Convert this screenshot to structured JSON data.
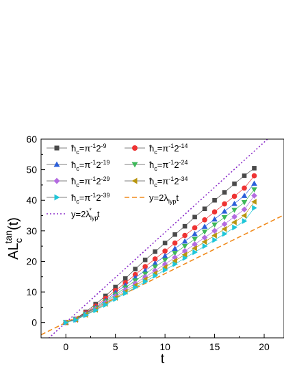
{
  "chart_data": {
    "type": "scatter",
    "xlabel": "t",
    "ylabel": {
      "base": "AL",
      "sub": "c",
      "sup": "tan",
      "tail": "(t)"
    },
    "xlim": [
      -2.5,
      22
    ],
    "ylim": [
      -5,
      60
    ],
    "xticks": [
      "0",
      "5",
      "10",
      "15",
      "20"
    ],
    "yticks": [
      "0",
      "10",
      "20",
      "30",
      "40",
      "50",
      "60"
    ],
    "grid": false,
    "legend_position": "top-left",
    "x": [
      0,
      1,
      2,
      3,
      4,
      5,
      6,
      7,
      8,
      9,
      10,
      11,
      12,
      13,
      14,
      15,
      16,
      17,
      18,
      19
    ],
    "series": [
      {
        "name": "ħc=π⁻¹2⁻⁹",
        "legend": {
          "pre": "ħ",
          "sub": "c",
          "mid": "=π",
          "sup1": "-1",
          "mid2": "2",
          "sup2": "-9"
        },
        "marker": "square",
        "color": "#4a4a4a",
        "values": [
          0,
          1.2,
          3.5,
          6.0,
          8.7,
          11.6,
          14.4,
          17.5,
          20.5,
          23.2,
          26.0,
          28.8,
          31.5,
          34.5,
          37.2,
          40.0,
          42.6,
          45.4,
          48.0,
          50.5
        ]
      },
      {
        "name": "ħc=π⁻¹2⁻¹⁴",
        "legend": {
          "pre": "ħ",
          "sub": "c",
          "mid": "=π",
          "sup1": "-1",
          "mid2": "2",
          "sup2": "-14"
        },
        "marker": "circle",
        "color": "#ee3333",
        "values": [
          0,
          1.1,
          3.2,
          5.4,
          7.9,
          10.5,
          13.0,
          15.7,
          18.3,
          20.8,
          23.4,
          26.0,
          28.5,
          31.0,
          33.6,
          36.2,
          38.8,
          41.3,
          44.0,
          48.0
        ]
      },
      {
        "name": "ħc=π⁻¹2⁻¹⁹",
        "legend": {
          "pre": "ħ",
          "sub": "c",
          "mid": "=π",
          "sup1": "-1",
          "mid2": "2",
          "sup2": "-19"
        },
        "marker": "triangle-up",
        "color": "#2b5fd9",
        "values": [
          0,
          1.05,
          3.0,
          5.0,
          7.3,
          9.8,
          12.2,
          14.7,
          17.0,
          19.4,
          21.8,
          24.2,
          26.6,
          29.0,
          31.4,
          33.8,
          36.4,
          38.9,
          41.5,
          45.5
        ]
      },
      {
        "name": "ħc=π⁻¹2⁻²⁴",
        "legend": {
          "pre": "ħ",
          "sub": "c",
          "mid": "=π",
          "sup1": "-1",
          "mid2": "2",
          "sup2": "-24"
        },
        "marker": "triangle-down",
        "color": "#3fb85a",
        "values": [
          0,
          1.0,
          2.8,
          4.7,
          6.9,
          9.1,
          11.4,
          13.7,
          15.9,
          18.2,
          20.4,
          22.7,
          25.0,
          27.3,
          29.7,
          32.0,
          34.4,
          36.8,
          39.3,
          43.5
        ]
      },
      {
        "name": "ħc=π⁻¹2⁻²⁹",
        "legend": {
          "pre": "ħ",
          "sub": "c",
          "mid": "=π",
          "sup1": "-1",
          "mid2": "2",
          "sup2": "-29"
        },
        "marker": "diamond",
        "color": "#b46be0",
        "values": [
          0,
          0.95,
          2.6,
          4.4,
          6.5,
          8.6,
          10.7,
          12.8,
          14.9,
          17.0,
          19.1,
          21.3,
          23.4,
          25.6,
          27.8,
          30.0,
          32.2,
          34.6,
          37.0,
          41.5
        ]
      },
      {
        "name": "ħc=π⁻¹2⁻³⁴",
        "legend": {
          "pre": "ħ",
          "sub": "c",
          "mid": "=π",
          "sup1": "-1",
          "mid2": "2",
          "sup2": "-34"
        },
        "marker": "triangle-left",
        "color": "#b8950f",
        "values": [
          0,
          0.9,
          2.5,
          4.2,
          6.1,
          8.1,
          10.1,
          12.1,
          14.1,
          16.1,
          18.1,
          20.2,
          22.2,
          24.3,
          26.4,
          28.5,
          30.6,
          32.8,
          35.0,
          39.5
        ]
      },
      {
        "name": "ħc=π⁻¹2⁻³⁹",
        "legend": {
          "pre": "ħ",
          "sub": "c",
          "mid": "=π",
          "sup1": "-1",
          "mid2": "2",
          "sup2": "-39"
        },
        "marker": "triangle-right",
        "color": "#1fc6d8",
        "values": [
          0,
          0.85,
          2.4,
          4.0,
          5.8,
          7.7,
          9.6,
          11.5,
          13.4,
          15.3,
          17.2,
          19.1,
          21.1,
          23.0,
          25.0,
          27.0,
          29.0,
          31.1,
          33.2,
          37.5
        ]
      }
    ],
    "lines": [
      {
        "name": "y=2λlypt",
        "legend": {
          "pre": "y=2λ",
          "sub": "lyp",
          "tail": "t"
        },
        "style": "dashed",
        "color": "#f08a1c",
        "slope": 1.6,
        "intercept": 0
      },
      {
        "name": "y=2λ*lypt",
        "legend": {
          "pre": "y=2λ",
          "sub": "lyp",
          "sup": "*",
          "tail": "t"
        },
        "style": "dotted",
        "color": "#8a2cc9",
        "slope": 2.95,
        "intercept": 0
      }
    ]
  }
}
